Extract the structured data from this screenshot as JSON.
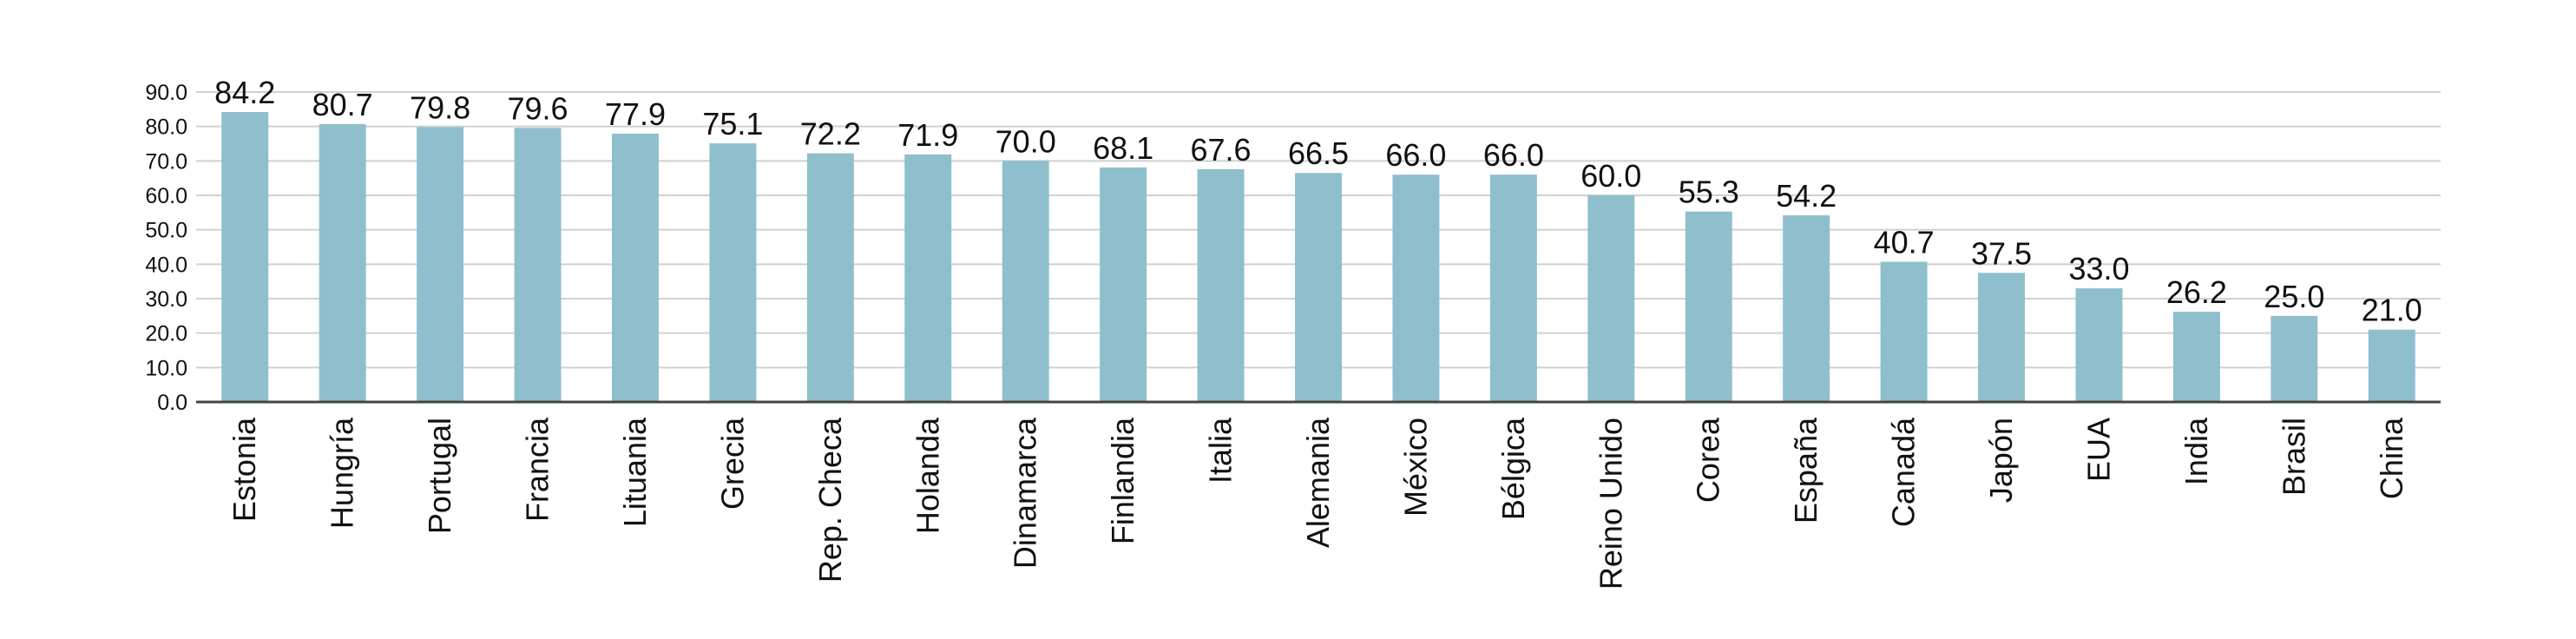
{
  "chart_data": {
    "type": "bar",
    "categories": [
      "Estonia",
      "Hungría",
      "Portugal",
      "Francia",
      "Lituania",
      "Grecia",
      "Rep. Checa",
      "Holanda",
      "Dinamarca",
      "Finlandia",
      "Italia",
      "Alemania",
      "México",
      "Bélgica",
      "Reino Unido",
      "Corea",
      "España",
      "Canadá",
      "Japón",
      "EUA",
      "India",
      "Brasil",
      "China"
    ],
    "values": [
      84.2,
      80.7,
      79.8,
      79.6,
      77.9,
      75.1,
      72.2,
      71.9,
      70.0,
      68.1,
      67.6,
      66.5,
      66.0,
      66.0,
      60.0,
      55.3,
      54.2,
      40.7,
      37.5,
      33.0,
      26.2,
      25.0,
      21.0
    ],
    "value_labels": [
      "84.2",
      "80.7",
      "79.8",
      "79.6",
      "77.9",
      "75.1",
      "72.2",
      "71.9",
      "70.0",
      "68.1",
      "67.6",
      "66.5",
      "66.0",
      "66.0",
      "60.0",
      "55.3",
      "54.2",
      "40.7",
      "37.5",
      "33.0",
      "26.2",
      "25.0",
      "21.0"
    ],
    "color": "#8fbfcc",
    "ylim": [
      0,
      90
    ],
    "yticks": [
      {
        "value": 0,
        "label": "0.0"
      },
      {
        "value": 10,
        "label": "10.0"
      },
      {
        "value": 20,
        "label": "20.0"
      },
      {
        "value": 30,
        "label": "30.0"
      },
      {
        "value": 40,
        "label": "40.0"
      },
      {
        "value": 50,
        "label": "50.0"
      },
      {
        "value": 60,
        "label": "60.0"
      },
      {
        "value": 70,
        "label": "70.0"
      },
      {
        "value": 80,
        "label": "80.0"
      },
      {
        "value": 90,
        "label": "90.0"
      }
    ],
    "grid": true
  }
}
